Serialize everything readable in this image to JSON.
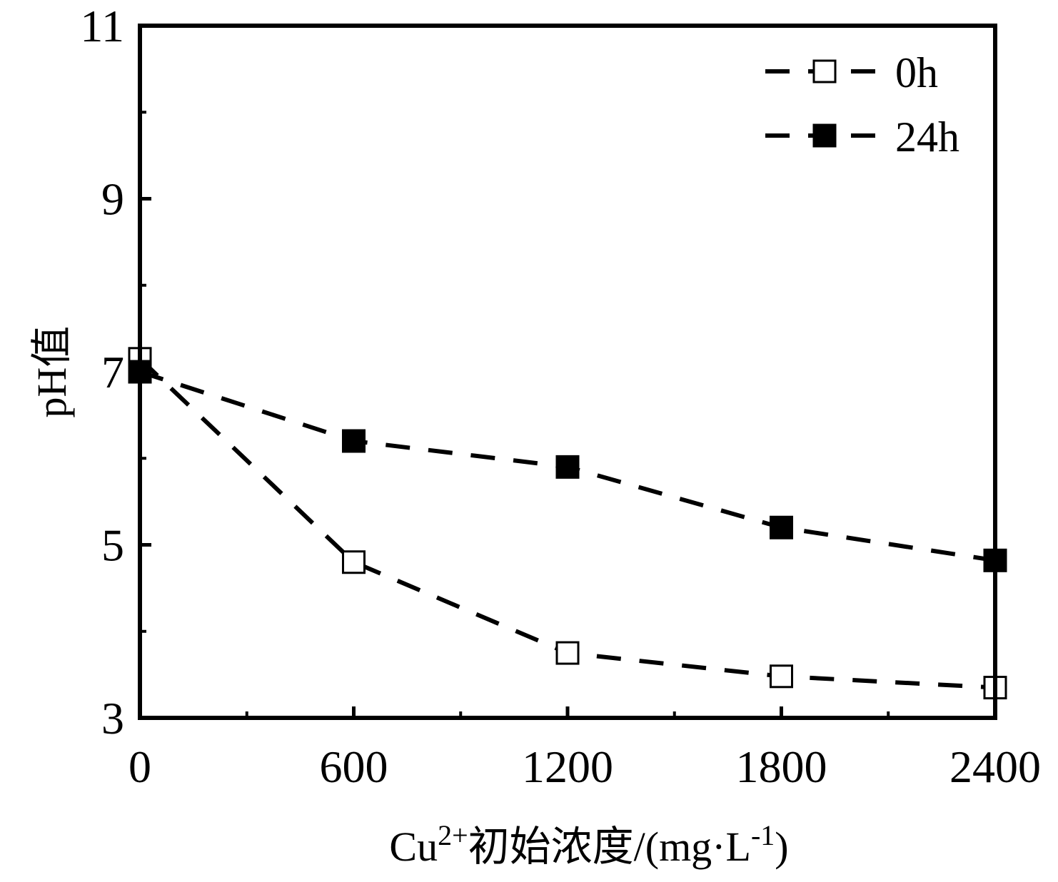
{
  "chart_data": {
    "type": "line",
    "xlabel": {
      "prefix": "Cu",
      "superscript": "2+",
      "middle": "初始浓度/(mg·L",
      "unit_superscript": "-1",
      "suffix": ")"
    },
    "ylabel": "pH值",
    "xlim": [
      0,
      2400
    ],
    "ylim": [
      3,
      11
    ],
    "x_ticks": [
      0,
      600,
      1200,
      1800,
      2400
    ],
    "x_tick_labels": [
      "0",
      "600",
      "1200",
      "1800",
      "2400"
    ],
    "y_ticks": [
      3,
      5,
      7,
      9,
      11
    ],
    "y_tick_labels": [
      "3",
      "5",
      "7",
      "9",
      "11"
    ],
    "grid": false,
    "legend_position": "top-right",
    "x": [
      0,
      600,
      1200,
      1800,
      2400
    ],
    "series": [
      {
        "name": "0h",
        "marker": "open-square",
        "line_style": "dashed",
        "color": "#000000",
        "values": [
          7.15,
          4.8,
          3.75,
          3.48,
          3.35
        ]
      },
      {
        "name": "24h",
        "marker": "filled-square",
        "line_style": "dashed",
        "color": "#000000",
        "values": [
          7.0,
          6.2,
          5.9,
          5.2,
          4.82
        ]
      }
    ]
  }
}
